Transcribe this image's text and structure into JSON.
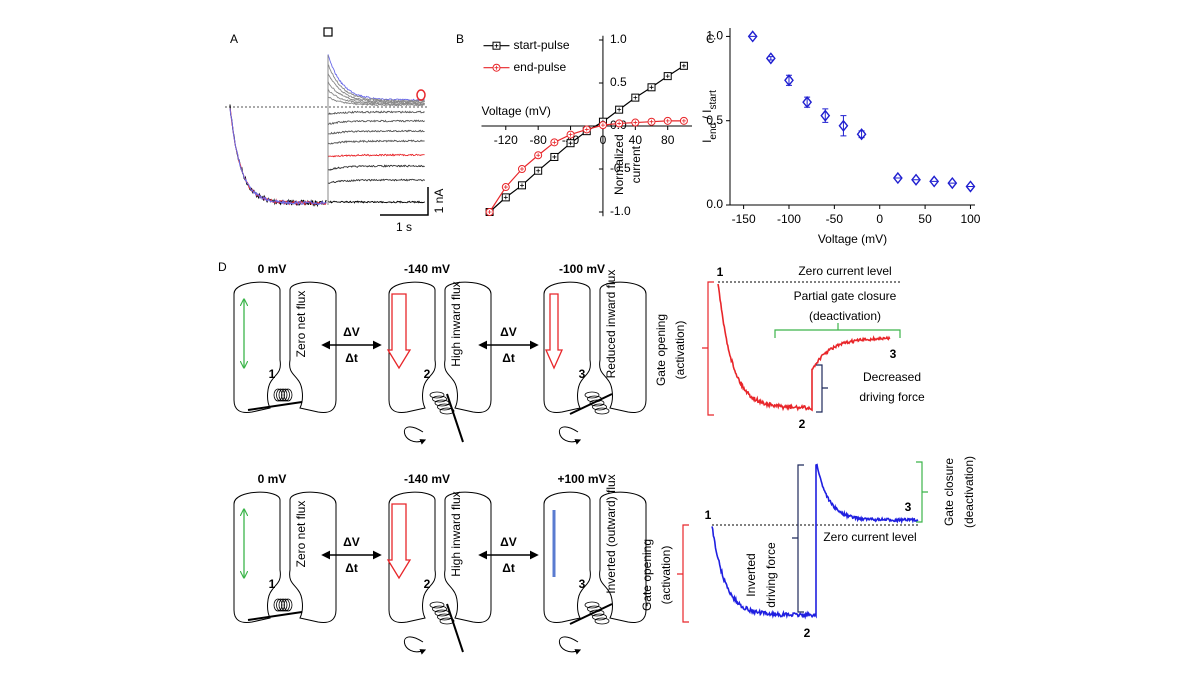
{
  "figure": {
    "panel_labels": {
      "a": "A",
      "b": "B",
      "c": "C",
      "d": "D"
    }
  },
  "panel_a": {
    "scale_current": "1 nA",
    "scale_time": "1 s"
  },
  "chart_data": [
    {
      "type": "line",
      "xlabel": "Voltage (mV)",
      "ylabel": [
        "Normalized",
        "current"
      ],
      "x": [
        -140,
        -120,
        -100,
        -80,
        -60,
        -40,
        -20,
        0,
        20,
        40,
        60,
        80,
        100
      ],
      "series": [
        {
          "name": "start-pulse",
          "color": "#000000",
          "marker": "square",
          "values": [
            -1.0,
            -0.83,
            -0.69,
            -0.52,
            -0.36,
            -0.2,
            -0.06,
            0.05,
            0.19,
            0.33,
            0.45,
            0.58,
            0.7
          ]
        },
        {
          "name": "end-pulse",
          "color": "#e8262a",
          "marker": "circle",
          "values": [
            -1.0,
            -0.71,
            -0.5,
            -0.34,
            -0.19,
            -0.1,
            -0.04,
            0.01,
            0.03,
            0.04,
            0.05,
            0.06,
            0.06
          ]
        }
      ],
      "xlim": [
        -150,
        110
      ],
      "ylim": [
        -1.05,
        1.05
      ],
      "xticks": [
        -120,
        -80,
        -40,
        0,
        40,
        80
      ],
      "yticks": [
        {
          "value": 1,
          "label": "1.0"
        },
        {
          "value": 0.5,
          "label": "0.5"
        },
        {
          "value": 0,
          "label": "0.0"
        },
        {
          "value": -0.5,
          "label": "-0.5"
        },
        {
          "value": -1,
          "label": "-1.0"
        }
      ],
      "axes_at_origin": true,
      "legend": "upper left"
    },
    {
      "type": "scatter",
      "xlabel": "Voltage (mV)",
      "ylabel": [
        "I",
        "end",
        " / I",
        "start"
      ],
      "x": [
        -140,
        -120,
        -100,
        -80,
        -60,
        -40,
        -20,
        20,
        40,
        60,
        80,
        100
      ],
      "series": [
        {
          "name": "I_end / I_start",
          "color": "#1f1fd0",
          "marker": "diamond",
          "values": [
            1.0,
            0.87,
            0.74,
            0.61,
            0.53,
            0.47,
            0.42,
            0.16,
            0.15,
            0.14,
            0.13,
            0.11
          ],
          "errors": [
            0,
            0.01,
            0.03,
            0.03,
            0.04,
            0.06,
            0.02,
            0,
            0,
            0,
            0,
            0
          ]
        }
      ],
      "xlim": [
        -165,
        105
      ],
      "ylim": [
        0,
        1.05
      ],
      "xticks": [
        -150,
        -100,
        -50,
        0,
        50,
        100
      ],
      "yticks": [
        {
          "value": 0,
          "label": "0.0"
        },
        {
          "value": 0.5,
          "label": "0.5"
        },
        {
          "value": 1,
          "label": "1.0"
        }
      ],
      "axes_at_origin": false
    }
  ],
  "panel_d": {
    "transition": {
      "voltage_step": "ΔV",
      "time_step": "Δt"
    },
    "rows": [
      {
        "states": [
          {
            "voltage": "0 mV",
            "flux": "Zero net flux",
            "number": "1"
          },
          {
            "voltage": "-140 mV",
            "flux": "High inward flux",
            "number": "2"
          },
          {
            "voltage": "-100 mV",
            "flux": "Reduced inward flux",
            "number": "3"
          }
        ],
        "trace": {
          "zero_level": "Zero current level",
          "activation": [
            "Gate opening",
            "(activation)"
          ],
          "deactivation": [
            "Partial gate closure",
            "(deactivation)"
          ],
          "driving_force": [
            "Decreased",
            "driving force"
          ]
        }
      },
      {
        "states": [
          {
            "voltage": "0 mV",
            "flux": "Zero net flux",
            "number": "1"
          },
          {
            "voltage": "-140 mV",
            "flux": "High inward flux",
            "number": "2"
          },
          {
            "voltage": "+100 mV",
            "flux": "Inverted (outward) flux",
            "number": "3"
          }
        ],
        "trace": {
          "zero_level": "Zero current level",
          "activation": [
            "Gate opening",
            "(activation)"
          ],
          "deactivation": [
            "Gate closure",
            "(deactivation)"
          ],
          "driving_force": [
            "Inverted",
            "driving force"
          ]
        }
      }
    ]
  }
}
